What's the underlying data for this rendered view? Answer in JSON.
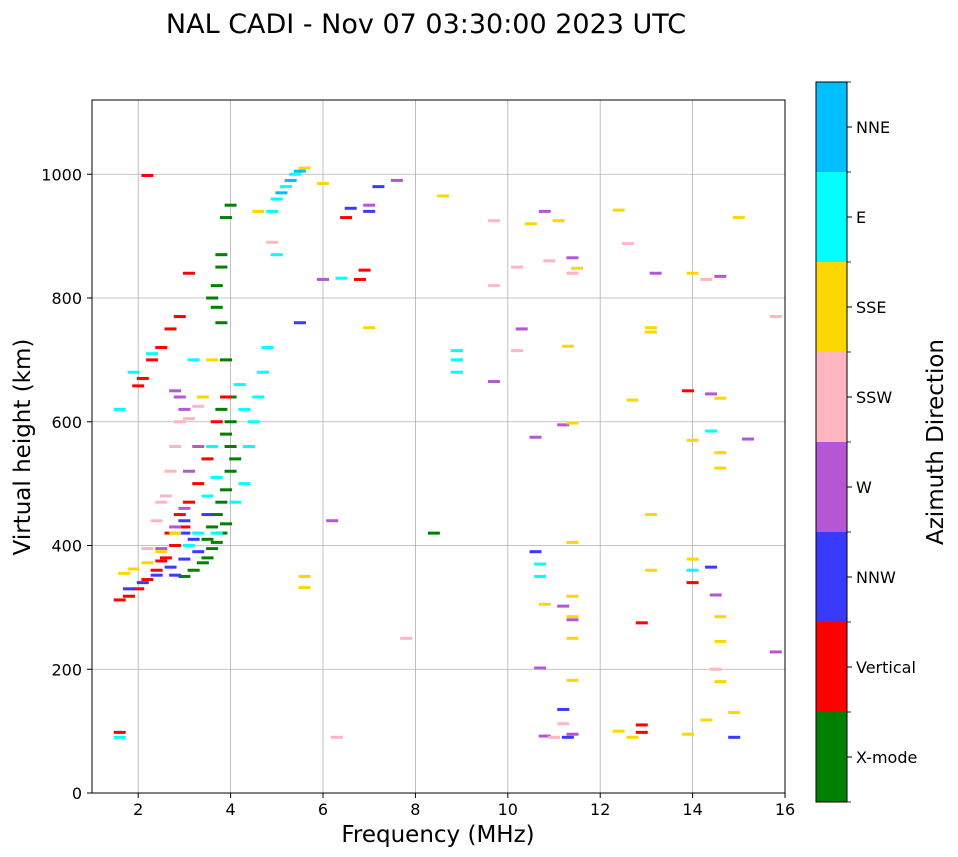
{
  "chart_data": {
    "type": "scatter",
    "title": "NAL CADI - Nov 07 03:30:00 2023 UTC",
    "xlabel": "Frequency (MHz)",
    "ylabel": "Virtual height (km)",
    "xlim": [
      1,
      16
    ],
    "ylim": [
      0,
      1120
    ],
    "xticks": [
      2,
      4,
      6,
      8,
      10,
      12,
      14,
      16
    ],
    "yticks": [
      0,
      200,
      400,
      600,
      800,
      1000
    ],
    "grid": true,
    "colorbar": {
      "label": "Azimuth Direction",
      "categories": [
        {
          "name": "X-mode",
          "color": "#008000"
        },
        {
          "name": "Vertical",
          "color": "#ff0000"
        },
        {
          "name": "NNW",
          "color": "#3a3aff"
        },
        {
          "name": "W",
          "color": "#b556d4"
        },
        {
          "name": "SSW",
          "color": "#ffb6c1"
        },
        {
          "name": "SSE",
          "color": "#ffd700"
        },
        {
          "name": "E",
          "color": "#00ffff"
        },
        {
          "name": "NNE",
          "color": "#00bfff"
        }
      ]
    },
    "series": [
      {
        "name": "X-mode",
        "points": [
          [
            3.5,
            380
          ],
          [
            3.6,
            395
          ],
          [
            3.7,
            405
          ],
          [
            3.8,
            420
          ],
          [
            3.9,
            435
          ],
          [
            3.7,
            450
          ],
          [
            3.8,
            470
          ],
          [
            3.9,
            490
          ],
          [
            3.6,
            430
          ],
          [
            3.5,
            410
          ],
          [
            4.0,
            520
          ],
          [
            4.1,
            540
          ],
          [
            4.0,
            560
          ],
          [
            3.9,
            580
          ],
          [
            4.0,
            600
          ],
          [
            3.8,
            620
          ],
          [
            4.0,
            640
          ],
          [
            3.2,
            360
          ],
          [
            3.0,
            350
          ],
          [
            3.4,
            372
          ],
          [
            3.9,
            700
          ],
          [
            3.8,
            760
          ],
          [
            3.7,
            785
          ],
          [
            3.6,
            800
          ],
          [
            3.7,
            820
          ],
          [
            3.8,
            850
          ],
          [
            3.8,
            870
          ],
          [
            3.9,
            930
          ],
          [
            4.0,
            950
          ],
          [
            8.4,
            420
          ]
        ]
      },
      {
        "name": "Vertical",
        "points": [
          [
            1.6,
            312
          ],
          [
            1.8,
            318
          ],
          [
            2.0,
            330
          ],
          [
            2.2,
            345
          ],
          [
            2.4,
            360
          ],
          [
            2.6,
            380
          ],
          [
            2.8,
            400
          ],
          [
            3.0,
            430
          ],
          [
            2.9,
            450
          ],
          [
            3.1,
            470
          ],
          [
            2.7,
            420
          ],
          [
            2.5,
            375
          ],
          [
            3.3,
            500
          ],
          [
            3.5,
            540
          ],
          [
            3.7,
            600
          ],
          [
            3.9,
            640
          ],
          [
            2.0,
            658
          ],
          [
            2.1,
            670
          ],
          [
            2.3,
            700
          ],
          [
            2.5,
            720
          ],
          [
            2.7,
            750
          ],
          [
            2.9,
            770
          ],
          [
            3.1,
            840
          ],
          [
            2.2,
            998
          ],
          [
            6.5,
            930
          ],
          [
            6.9,
            845
          ],
          [
            6.8,
            830
          ],
          [
            1.6,
            98
          ],
          [
            12.9,
            275
          ],
          [
            12.9,
            110
          ],
          [
            12.9,
            98
          ],
          [
            14.0,
            340
          ],
          [
            13.9,
            650
          ]
        ]
      },
      {
        "name": "NNW",
        "points": [
          [
            1.8,
            330
          ],
          [
            2.1,
            340
          ],
          [
            2.4,
            352
          ],
          [
            2.7,
            365
          ],
          [
            3.0,
            378
          ],
          [
            3.3,
            390
          ],
          [
            3.2,
            410
          ],
          [
            3.0,
            420
          ],
          [
            3.5,
            450
          ],
          [
            2.8,
            352
          ],
          [
            6.6,
            945
          ],
          [
            7.0,
            940
          ],
          [
            7.2,
            980
          ],
          [
            10.6,
            390
          ],
          [
            11.2,
            135
          ],
          [
            14.9,
            90
          ],
          [
            14.4,
            365
          ],
          [
            11.3,
            90
          ],
          [
            3.0,
            440
          ],
          [
            5.5,
            760
          ]
        ]
      },
      {
        "name": "W",
        "points": [
          [
            2.5,
            395
          ],
          [
            2.8,
            430
          ],
          [
            3.0,
            460
          ],
          [
            3.1,
            520
          ],
          [
            3.3,
            560
          ],
          [
            3.0,
            620
          ],
          [
            2.9,
            640
          ],
          [
            2.8,
            650
          ],
          [
            6.2,
            440
          ],
          [
            7.0,
            950
          ],
          [
            7.6,
            990
          ],
          [
            6.0,
            830
          ],
          [
            9.7,
            665
          ],
          [
            10.3,
            750
          ],
          [
            10.8,
            940
          ],
          [
            11.2,
            595
          ],
          [
            11.4,
            865
          ],
          [
            13.2,
            840
          ],
          [
            14.6,
            835
          ],
          [
            14.4,
            645
          ],
          [
            15.2,
            572
          ],
          [
            15.8,
            228
          ],
          [
            10.6,
            575
          ],
          [
            10.8,
            92
          ],
          [
            11.4,
            95
          ],
          [
            14.5,
            320
          ],
          [
            11.2,
            302
          ],
          [
            11.4,
            280
          ],
          [
            10.7,
            202
          ]
        ]
      },
      {
        "name": "SSW",
        "points": [
          [
            2.2,
            395
          ],
          [
            2.4,
            440
          ],
          [
            2.6,
            480
          ],
          [
            2.7,
            520
          ],
          [
            2.8,
            560
          ],
          [
            2.9,
            600
          ],
          [
            2.5,
            470
          ],
          [
            3.1,
            605
          ],
          [
            3.3,
            625
          ],
          [
            4.9,
            890
          ],
          [
            6.3,
            90
          ],
          [
            7.8,
            250
          ],
          [
            9.7,
            820
          ],
          [
            9.7,
            925
          ],
          [
            10.2,
            715
          ],
          [
            10.2,
            850
          ],
          [
            10.9,
            860
          ],
          [
            12.6,
            888
          ],
          [
            14.3,
            830
          ],
          [
            14.5,
            200
          ],
          [
            15.8,
            770
          ],
          [
            11.4,
            840
          ],
          [
            11.0,
            90
          ],
          [
            11.2,
            112
          ]
        ]
      },
      {
        "name": "SSE",
        "points": [
          [
            1.7,
            355
          ],
          [
            1.9,
            362
          ],
          [
            2.2,
            372
          ],
          [
            2.5,
            390
          ],
          [
            2.8,
            420
          ],
          [
            3.4,
            640
          ],
          [
            3.6,
            700
          ],
          [
            4.6,
            940
          ],
          [
            5.6,
            1010
          ],
          [
            6.0,
            985
          ],
          [
            7.0,
            752
          ],
          [
            8.6,
            965
          ],
          [
            10.5,
            920
          ],
          [
            11.1,
            925
          ],
          [
            11.3,
            722
          ],
          [
            11.4,
            318
          ],
          [
            11.4,
            285
          ],
          [
            11.4,
            250
          ],
          [
            11.4,
            182
          ],
          [
            12.4,
            942
          ],
          [
            12.7,
            635
          ],
          [
            13.1,
            752
          ],
          [
            13.1,
            745
          ],
          [
            13.1,
            450
          ],
          [
            13.1,
            360
          ],
          [
            14.0,
            840
          ],
          [
            13.9,
            95
          ],
          [
            14.0,
            378
          ],
          [
            14.0,
            570
          ],
          [
            14.6,
            638
          ],
          [
            14.6,
            550
          ],
          [
            14.6,
            525
          ],
          [
            14.6,
            285
          ],
          [
            14.6,
            245
          ],
          [
            14.6,
            180
          ],
          [
            14.9,
            130
          ],
          [
            15.0,
            930
          ],
          [
            14.3,
            118
          ],
          [
            12.4,
            100
          ],
          [
            12.7,
            90
          ],
          [
            11.4,
            405
          ],
          [
            11.4,
            598
          ],
          [
            11.5,
            848
          ],
          [
            5.6,
            350
          ],
          [
            5.6,
            332
          ],
          [
            10.8,
            305
          ]
        ]
      },
      {
        "name": "E",
        "points": [
          [
            1.6,
            620
          ],
          [
            1.9,
            680
          ],
          [
            2.3,
            710
          ],
          [
            3.2,
            700
          ],
          [
            3.5,
            480
          ],
          [
            3.7,
            510
          ],
          [
            4.1,
            470
          ],
          [
            4.3,
            500
          ],
          [
            4.4,
            560
          ],
          [
            4.5,
            600
          ],
          [
            4.6,
            640
          ],
          [
            4.7,
            680
          ],
          [
            4.8,
            720
          ],
          [
            4.3,
            620
          ],
          [
            4.2,
            660
          ],
          [
            3.6,
            560
          ],
          [
            3.3,
            420
          ],
          [
            3.1,
            400
          ],
          [
            5.0,
            960
          ],
          [
            5.2,
            980
          ],
          [
            5.4,
            1000
          ],
          [
            4.9,
            940
          ],
          [
            6.4,
            832
          ],
          [
            8.9,
            700
          ],
          [
            8.9,
            715
          ],
          [
            8.9,
            680
          ],
          [
            10.7,
            350
          ],
          [
            10.7,
            370
          ],
          [
            14.0,
            360
          ],
          [
            14.4,
            585
          ],
          [
            1.6,
            90
          ],
          [
            3.7,
            420
          ],
          [
            5.0,
            870
          ]
        ]
      },
      {
        "name": "NNE",
        "points": [
          [
            5.1,
            970
          ],
          [
            5.3,
            990
          ],
          [
            5.5,
            1005
          ]
        ]
      }
    ]
  }
}
